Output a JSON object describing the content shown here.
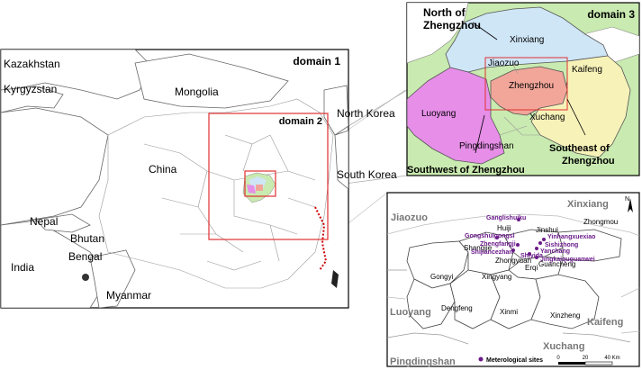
{
  "domain1": {
    "tag": "domain 1",
    "countries": [
      "Kazakhstan",
      "Kyrgyzstan",
      "Mongolia",
      "North Korea",
      "China",
      "South Korea",
      "Nepal",
      "Bhutan",
      "Bengal",
      "India",
      "Myanmar"
    ],
    "domain2_tag": "domain 2"
  },
  "domain3": {
    "tag": "domain 3",
    "regions": {
      "north": "North of Zhengzhou",
      "southwest": "Southwest of Zhengzhou",
      "southeast": "Southeast of Zhengzhou"
    },
    "cities": [
      "Xinxiang",
      "Jiaozuo",
      "Kaifeng",
      "Zhengzhou",
      "Luoyang",
      "Xuchang",
      "Pingdingshan"
    ],
    "colors": {
      "north": "#cfe6f7",
      "southwest": "#e68ee8",
      "southeast": "#f7f2b8",
      "zhengzhou": "#f2a69a",
      "outer": "#c9eab0"
    }
  },
  "domain4": {
    "neighbors": [
      "Xinxiang",
      "Jiaozuo",
      "Luoyang",
      "Kaifeng",
      "Xuchang",
      "Pingdingshan"
    ],
    "counties": [
      "Huiji",
      "Jinshui",
      "Zhongmou",
      "Shangjie",
      "Zhongyuan",
      "Erqi",
      "Guancheng",
      "Gongyi",
      "Xingyang",
      "Dengfeng",
      "Xinmi",
      "Xinzheng"
    ],
    "sites": [
      "Ganglishuiku",
      "Gongshuigongsi",
      "Yinhangxuexiao",
      "Zhengfangji",
      "Sishizhong",
      "Shijiancezhan",
      "Yanchang",
      "Shiyida",
      "Jingkaiquguanwei"
    ],
    "legend_label": "Meterological sites",
    "scale": {
      "labels": [
        "0",
        "20",
        "40 Km"
      ]
    },
    "north_arrow": "N",
    "site_color": "#6a1b8a"
  }
}
